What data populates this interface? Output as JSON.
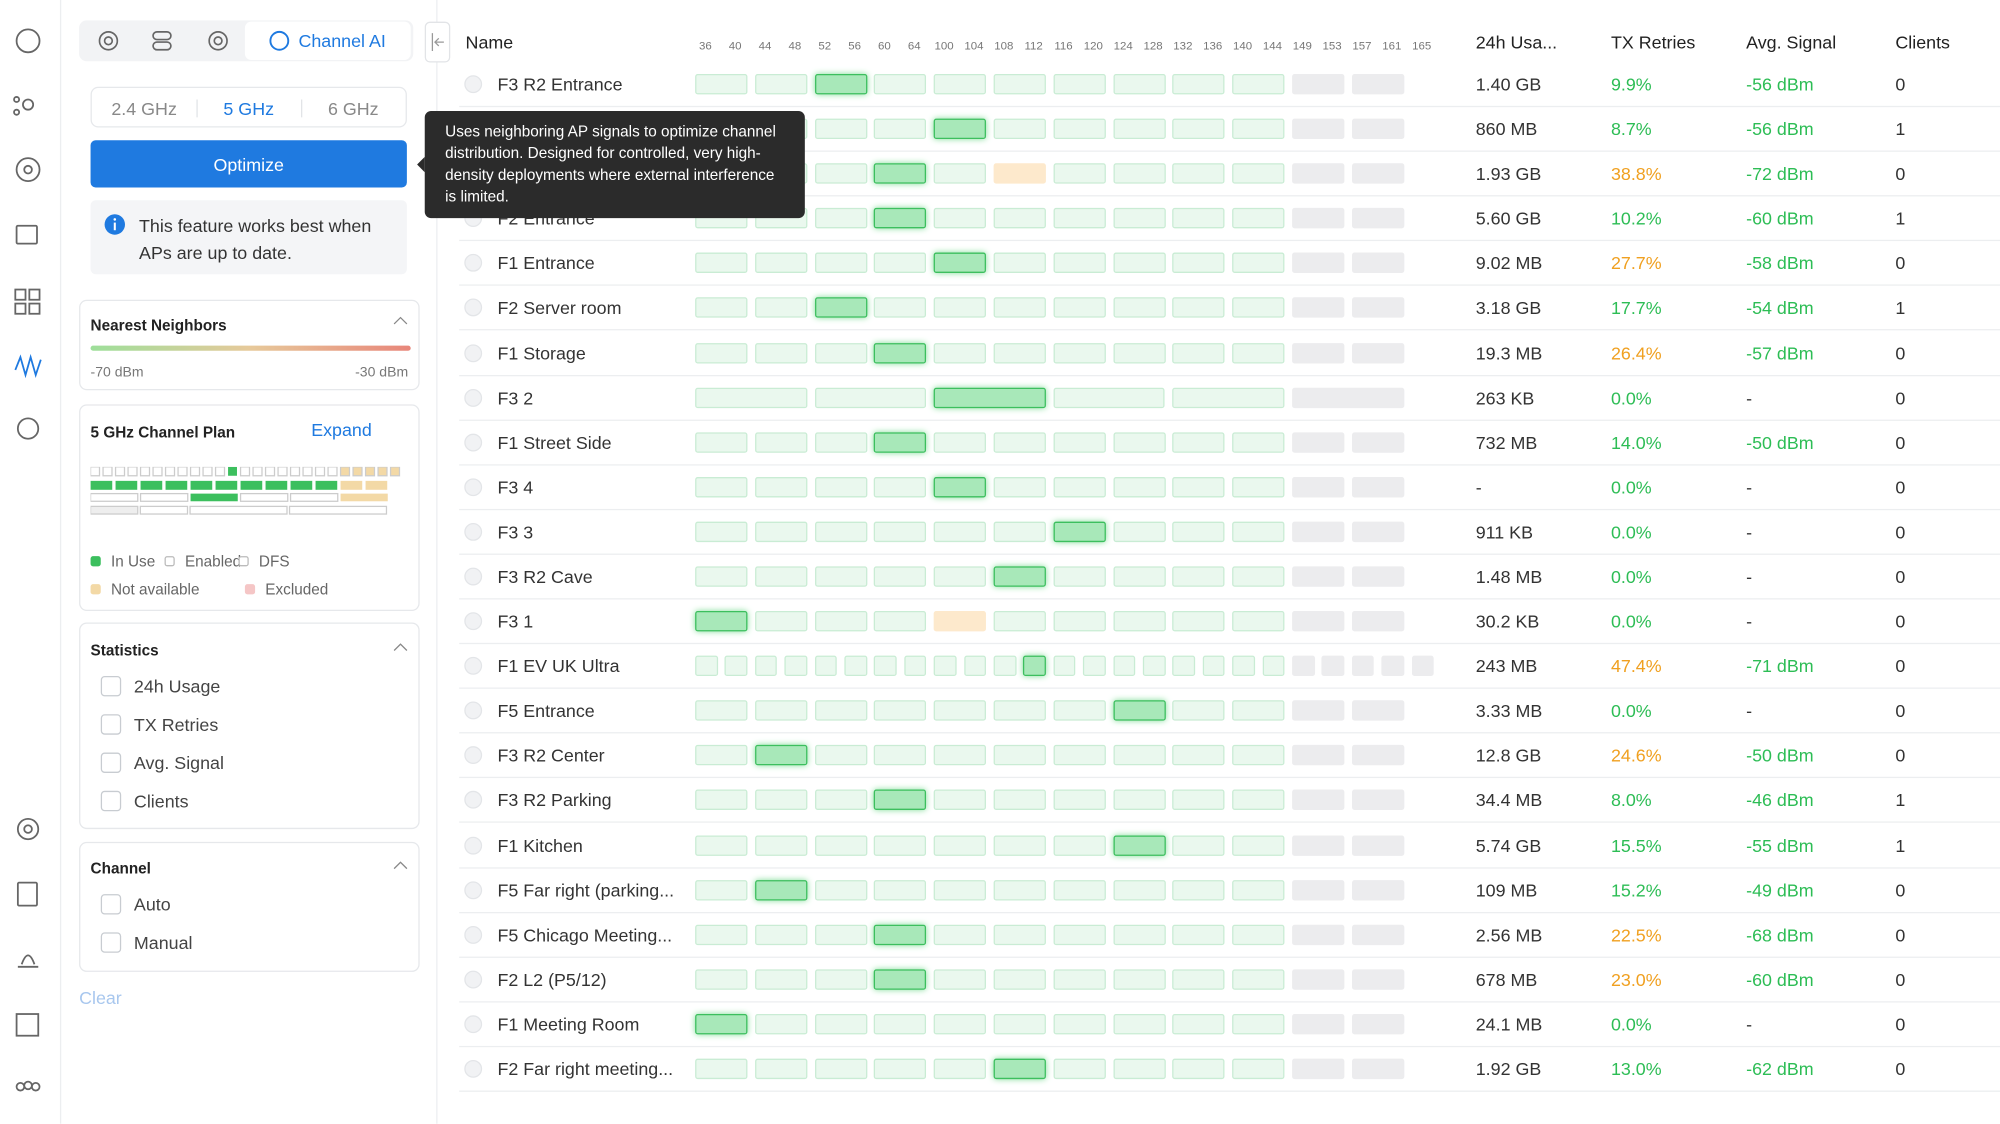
{
  "sidebar": {
    "tabs": {
      "active": "Channel AI"
    },
    "bands": [
      "2.4 GHz",
      "5 GHz",
      "6 GHz"
    ],
    "active_band": 1,
    "optimize": "Optimize",
    "info": "This feature works best when APs are up to date.",
    "neighbors": {
      "title": "Nearest Neighbors",
      "min": "-70 dBm",
      "max": "-30 dBm"
    },
    "plan": {
      "title": "5 GHz Channel Plan",
      "expand": "Expand",
      "legend": [
        "In Use",
        "Enabled",
        "DFS",
        "Not available",
        "Excluded"
      ]
    },
    "statistics": {
      "title": "Statistics",
      "options": [
        "24h Usage",
        "TX Retries",
        "Avg. Signal",
        "Clients"
      ]
    },
    "channel": {
      "title": "Channel",
      "options": [
        "Auto",
        "Manual"
      ]
    },
    "clear": "Clear"
  },
  "tooltip": "Uses neighboring AP signals to optimize channel distribution. Designed for controlled, very high-density deployments where external interference is limited.",
  "table": {
    "columns": {
      "name": "Name",
      "usage": "24h Usa...",
      "retries": "TX Retries",
      "signal": "Avg. Signal",
      "clients": "Clients"
    },
    "channels": [
      36,
      40,
      44,
      48,
      52,
      56,
      60,
      64,
      100,
      104,
      108,
      112,
      116,
      120,
      124,
      128,
      132,
      136,
      140,
      144,
      149,
      153,
      157,
      161,
      165
    ],
    "rows": [
      {
        "name": "F3 R2 Entrance",
        "usage": "1.40 GB",
        "retries": "9.9%",
        "signal": "-56 dBm",
        "clients": 0,
        "in_use": 2
      },
      {
        "usage": "860 MB",
        "retries": "8.7%",
        "signal": "-56 dBm",
        "clients": 1,
        "in_use": 4
      },
      {
        "usage": "1.93 GB",
        "retries": "38.8%",
        "signal": "-72 dBm",
        "clients": 0,
        "in_use": 3,
        "unavailable": 5
      },
      {
        "name": "F2 Entrance",
        "usage": "5.60 GB",
        "retries": "10.2%",
        "signal": "-60 dBm",
        "clients": 1,
        "in_use": 3
      },
      {
        "name": "F1 Entrance",
        "usage": "9.02 MB",
        "retries": "27.7%",
        "signal": "-58 dBm",
        "clients": 0,
        "in_use": 4
      },
      {
        "name": "F2 Server room",
        "usage": "3.18 GB",
        "retries": "17.7%",
        "signal": "-54 dBm",
        "clients": 1,
        "in_use": 2
      },
      {
        "name": "F1 Storage",
        "usage": "19.3 MB",
        "retries": "26.4%",
        "signal": "-57 dBm",
        "clients": 0,
        "in_use": 3
      },
      {
        "name": "F3 2",
        "usage": "263 KB",
        "retries": "0.0%",
        "signal": "-",
        "clients": 0,
        "in_use": 2,
        "layout": "wide"
      },
      {
        "name": "F1 Street Side",
        "usage": "732 MB",
        "retries": "14.0%",
        "signal": "-50 dBm",
        "clients": 0,
        "in_use": 3
      },
      {
        "name": "F3 4",
        "usage": "-",
        "retries": "0.0%",
        "signal": "-",
        "clients": 0,
        "in_use": 4
      },
      {
        "name": "F3 3",
        "usage": "911 KB",
        "retries": "0.0%",
        "signal": "-",
        "clients": 0,
        "in_use": 6
      },
      {
        "name": "F3 R2 Cave",
        "usage": "1.48 MB",
        "retries": "0.0%",
        "signal": "-",
        "clients": 0,
        "in_use": 5
      },
      {
        "name": "F3 1",
        "usage": "30.2 KB",
        "retries": "0.0%",
        "signal": "-",
        "clients": 0,
        "in_use": 0,
        "unavailable": 4
      },
      {
        "name": "F1 EV UK Ultra",
        "usage": "243 MB",
        "retries": "47.4%",
        "signal": "-71 dBm",
        "clients": 0,
        "in_use": 11,
        "layout": "narrow"
      },
      {
        "name": "F5 Entrance",
        "usage": "3.33 MB",
        "retries": "0.0%",
        "signal": "-",
        "clients": 0,
        "in_use": 7
      },
      {
        "name": "F3 R2 Center",
        "usage": "12.8 GB",
        "retries": "24.6%",
        "signal": "-50 dBm",
        "clients": 0,
        "in_use": 1
      },
      {
        "name": "F3 R2 Parking",
        "usage": "34.4 MB",
        "retries": "8.0%",
        "signal": "-46 dBm",
        "clients": 1,
        "in_use": 3
      },
      {
        "name": "F1 Kitchen",
        "usage": "5.74 GB",
        "retries": "15.5%",
        "signal": "-55 dBm",
        "clients": 1,
        "in_use": 7
      },
      {
        "name": "F5 Far right (parking...",
        "usage": "109 MB",
        "retries": "15.2%",
        "signal": "-49 dBm",
        "clients": 0,
        "in_use": 1
      },
      {
        "name": "F5 Chicago Meeting...",
        "usage": "2.56 MB",
        "retries": "22.5%",
        "signal": "-68 dBm",
        "clients": 0,
        "in_use": 3
      },
      {
        "name": "F2 L2 (P5/12)",
        "usage": "678 MB",
        "retries": "23.0%",
        "signal": "-60 dBm",
        "clients": 0,
        "in_use": 3
      },
      {
        "name": "F1 Meeting Room",
        "usage": "24.1 MB",
        "retries": "0.0%",
        "signal": "-",
        "clients": 0,
        "in_use": 0
      },
      {
        "name": "F2 Far right meeting...",
        "usage": "1.92 GB",
        "retries": "13.0%",
        "signal": "-62 dBm",
        "clients": 0,
        "in_use": 5
      }
    ]
  }
}
